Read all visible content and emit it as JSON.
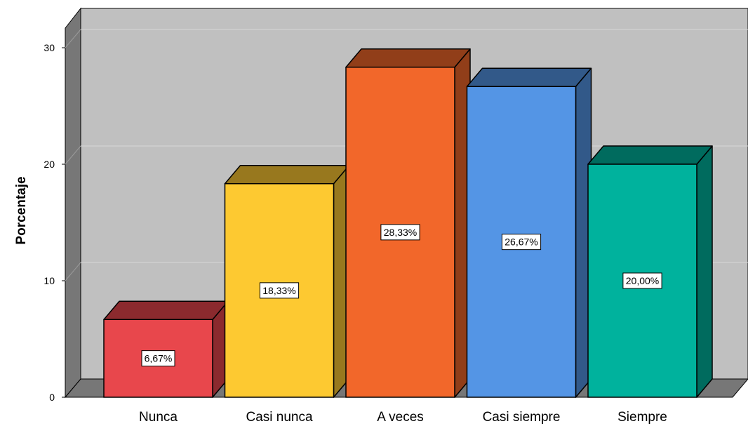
{
  "chart_data": {
    "type": "bar",
    "categories": [
      "Nunca",
      "Casi nunca",
      "A veces",
      "Casi siempre",
      "Siempre"
    ],
    "values": [
      6.67,
      18.33,
      28.33,
      26.67,
      20.0
    ],
    "data_labels": [
      "6,67%",
      "18,33%",
      "28,33%",
      "26,67%",
      "20,00%"
    ],
    "colors": [
      "#e8474c",
      "#fdc931",
      "#f2672a",
      "#5495e5",
      "#00b29d"
    ],
    "side_colors": [
      "#8b2a2e",
      "#98781e",
      "#913e19",
      "#325989",
      "#006b5e"
    ],
    "title": "",
    "xlabel": "",
    "ylabel": "Porcentaje",
    "ylim": [
      0,
      30
    ],
    "yticks": [
      0,
      10,
      20,
      30
    ],
    "grid": true,
    "legend": "none",
    "style": "3d",
    "background": "#c0c0c0"
  }
}
